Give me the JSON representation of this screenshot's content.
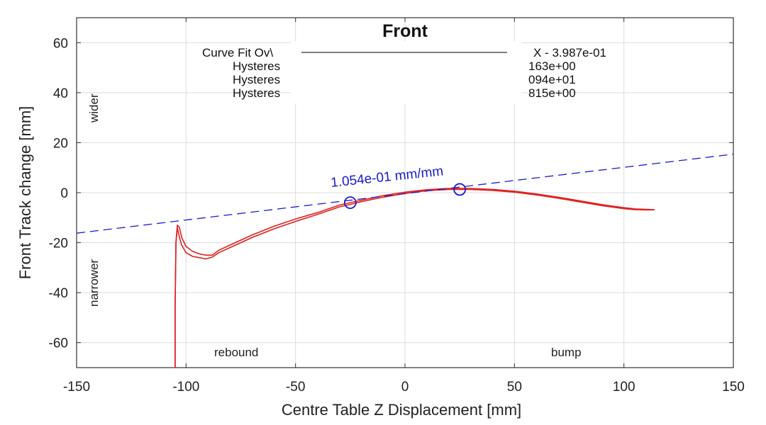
{
  "chart_data": {
    "type": "line",
    "title": "Front",
    "xlabel": "Centre Table Z Displacement [mm]",
    "ylabel": "Front Track change [mm]",
    "xlim": [
      -150,
      150
    ],
    "ylim": [
      -70,
      70
    ],
    "xticks": [
      "-150",
      "-100",
      "-50",
      "0",
      "50",
      "100",
      "150"
    ],
    "yticks": [
      "60",
      "40",
      "20",
      "0",
      "-20",
      "-40",
      "-60"
    ],
    "xtick_values": [
      -150,
      -100,
      -50,
      0,
      50,
      100,
      150
    ],
    "ytick_values": [
      60,
      40,
      20,
      0,
      -20,
      -40,
      -60
    ],
    "grid": true,
    "annotations": {
      "wider": "wider",
      "narrower": "narrower",
      "rebound": "rebound",
      "bump": "bump",
      "slope_label": "1.054e-01 mm/mm"
    },
    "legend_lines": [
      "Curve Fit Ov\\",
      "Hysteres",
      "Hysteres",
      "Hysteres"
    ],
    "legend_values": [
      "X - 3.987e-01",
      "163e+00",
      "094e+01",
      "815e+00"
    ],
    "series": [
      {
        "color": "#e02020",
        "style": "solid",
        "x": [
          -105,
          -105,
          -104.6,
          -104,
          -103,
          -102,
          -100,
          -97,
          -94,
          -91,
          -88,
          -85,
          -80,
          -75,
          -70,
          -60,
          -50,
          -40,
          -30,
          -25,
          -20,
          -10,
          0,
          10,
          20,
          30,
          40,
          50,
          60,
          70,
          80,
          90,
          100,
          105,
          110,
          114
        ],
        "y_upper": [
          -70,
          -45,
          -20,
          -13,
          -14,
          -18,
          -21.5,
          -23.5,
          -24.5,
          -25,
          -25,
          -23,
          -21,
          -19,
          -17,
          -13.5,
          -10.5,
          -8,
          -5,
          -4,
          -3,
          -1.2,
          0.2,
          1.2,
          1.7,
          1.7,
          1.3,
          0.6,
          -0.5,
          -1.8,
          -3.3,
          -4.8,
          -6,
          -6.5,
          -6.7,
          -6.8
        ],
        "y_lower": [
          -70,
          -45,
          -20,
          -14,
          -18,
          -21,
          -24,
          -25.5,
          -26,
          -26.5,
          -25.8,
          -24,
          -22,
          -20,
          -18,
          -14.5,
          -11.5,
          -8.7,
          -5.7,
          -4.7,
          -3.6,
          -1.8,
          -0.3,
          0.8,
          1.3,
          1.3,
          0.9,
          0.2,
          -0.9,
          -2.2,
          -3.7,
          -5.2,
          -6.4,
          -6.8,
          -6.9,
          -6.9
        ]
      },
      {
        "type": "fit",
        "color": "#1a1ad0",
        "style": "dashed",
        "slope": 0.1054,
        "intercept": -0.3987,
        "x": [
          -150,
          150
        ]
      }
    ],
    "markers": [
      {
        "x": -25,
        "y": -4,
        "color": "#1a1ad0"
      },
      {
        "x": 25,
        "y": 1.3,
        "color": "#1a1ad0"
      }
    ]
  }
}
